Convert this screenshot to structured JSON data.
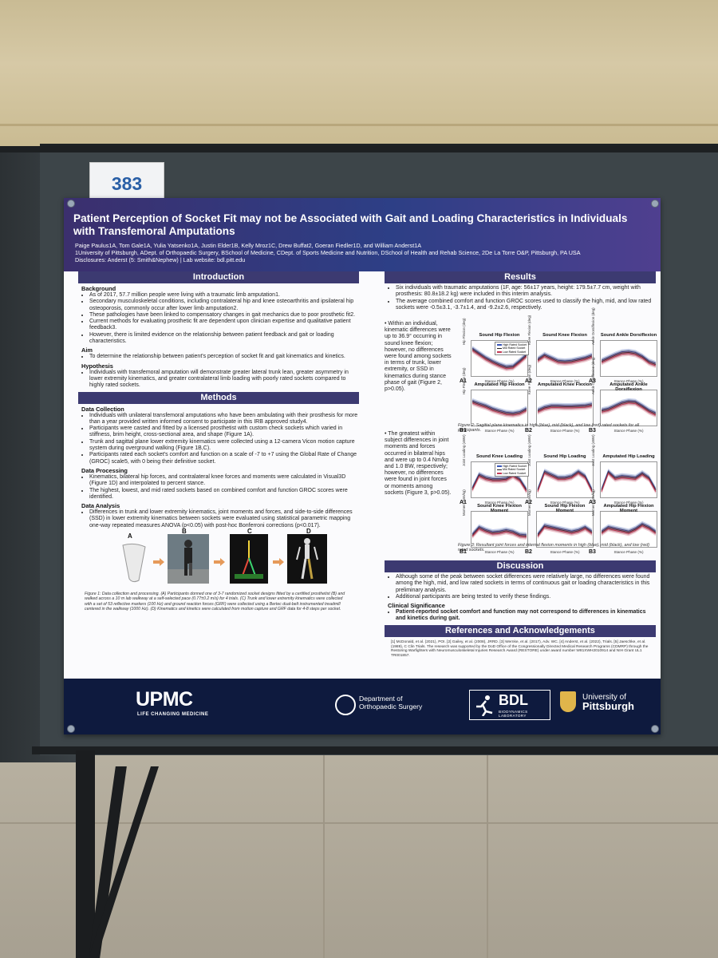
{
  "booth_number": "383",
  "header": {
    "title": "Patient Perception of Socket Fit may not be Associated with Gait and Loading Characteristics in Individuals with Transfemoral Amputations",
    "authors": "Paige Paulus1A, Tom Gale1A, Yulia Yatsenko1A, Justin Elder1B, Kelly Mroz1C, Drew Buffat2, Goeran Fiedler1D, and William Anderst1A",
    "affiliations": "1University of Pittsburgh, ADept. of Orthopaedic Surgery, BSchool of Medicine, CDept. of Sports Medicine and Nutrition, DSchool of Health and Rehab Science, 2De La Torre O&P, Pittsburgh, PA USA",
    "disclosures": "Disclosures: Anderst (5: Smith&Nephew) | Lab website: bdl.pitt.edu"
  },
  "introduction": {
    "heading": "Introduction",
    "background_label": "Background",
    "background": [
      "As of 2017, 57.7 million people were living with a traumatic limb amputation1.",
      "Secondary musculoskeletal conditions, including contralateral hip and knee osteoarthritis and ipsilateral hip osteoporosis, commonly occur after lower limb amputation2.",
      "These pathologies have been linked to compensatory changes in gait mechanics due to poor prosthetic fit2.",
      "Current methods for evaluating prosthetic fit are dependent upon clinician expertise and qualitative patient feedback3.",
      "However, there is limited evidence on the relationship between patient feedback and gait or loading characteristics."
    ],
    "aim_label": "Aim",
    "aim": [
      "To determine the relationship between patient's perception of socket fit and gait kinematics and kinetics."
    ],
    "hypothesis_label": "Hypothesis",
    "hypothesis": [
      "Individuals with transfemoral amputation will demonstrate greater lateral trunk lean, greater asymmetry in lower extremity kinematics, and greater contralateral limb loading with poorly rated sockets compared to highly rated sockets."
    ]
  },
  "methods": {
    "heading": "Methods",
    "data_collection_label": "Data Collection",
    "data_collection": [
      "Individuals with unilateral transfemoral amputations who have been ambulating with their prosthesis for more than a year provided written informed consent to participate in this IRB approved study4.",
      "Participants were casted and fitted by a licensed prosthetist with custom check sockets which varied in stiffness, brim height, cross-sectional area, and shape (Figure 1A).",
      "Trunk and sagittal plane lower extremity kinematics were collected using a 12-camera Vicon motion capture system during overground walking (Figure 1B,C).",
      "Participants rated each socket's comfort and function on a scale of -7 to +7 using the Global Rate of Change (GROC) scale5, with 0 being their definitive socket."
    ],
    "data_processing_label": "Data Processing",
    "data_processing": [
      "Kinematics, bilateral hip forces, and contralateral knee forces and moments were calculated in Visual3D (Figure 1D) and interpolated to percent stance.",
      "The highest, lowest, and mid rated sockets based on combined comfort and function GROC scores were identified."
    ],
    "data_analysis_label": "Data Analysis",
    "data_analysis": [
      "Differences in trunk and lower extremity kinematics, joint moments and forces, and side-to-side differences (SSD) in lower extremity kinematics between sockets were evaluated using statistical parametric mapping one-way repeated measures ANOVA (p<0.05) with post-hoc Bonferroni corrections (p<0.017)."
    ],
    "figure_labels": [
      "A",
      "B",
      "C",
      "D"
    ],
    "figure1_caption": "Figure 1: Data collection and processing. (A) Participants donned one of 3-7 randomized socket designs fitted by a certified prosthetist (B) and walked across a 10 m lab walkway at a self-selected pace (0.77±0.2 m/s) for 4 trials. (C) Trunk and lower extremity kinematics were collected with a set of 53 reflective markers (100 Hz) and ground reaction forces (GRF) were collected using a Bertec dual-belt instrumented treadmill centered in the walkway (1000 Hz). (D) Kinematics and kinetics were calculated from motion capture and GRF data for 4-8 steps per socket."
  },
  "results": {
    "heading": "Results",
    "bullets": [
      "Six individuals with traumatic amputations (1F, age: 56±17 years, height: 179.5±7.7 cm, weight with prosthesis: 80.8±18.2 kg) were included in this interim analysis.",
      "The average combined comfort and function GROC scores used to classify the high, mid, and low rated sockets were -0.5±3.1, -3.7±1.4, and -9.2±2.6, respectively."
    ],
    "side_text_1": "Within an individual, kinematic differences were up to 36.9° occurring in sound knee flexion; however, no differences were found among sockets in terms of trunk, lower extremity, or SSD in kinematics during stance phase of gait (Figure 2, p>0.05).",
    "side_text_2": "The greatest within subject differences in joint moments and forces occurred in bilateral hips and were up to 0.4 Nm/kg and 1.0 BW, respectively; however, no differences were found in joint forces or moments among sockets (Figure 3, p>0.05).",
    "legend": [
      "High Rated Socket",
      "Mid Rated Socket",
      "Low Rated Socket"
    ],
    "legend_colors": [
      "#3a56b8",
      "#222222",
      "#c43a56"
    ],
    "figure2": {
      "plots": [
        {
          "id": "A1",
          "title": "Sound Hip Flexion",
          "ylabel": "Hip Flexion (deg)",
          "xlabel": "Stance Phase (%)"
        },
        {
          "id": "A2",
          "title": "Sound Knee Flexion",
          "ylabel": "Knee Flexion (deg)",
          "xlabel": "Stance Phase (%)"
        },
        {
          "id": "A3",
          "title": "Sound Ankle Dorsiflexion",
          "ylabel": "Ankle Dorsiflexion (deg)",
          "xlabel": "Stance Phase (%)"
        },
        {
          "id": "B1",
          "title": "Amputated Hip Flexion",
          "ylabel": "Hip Flexion (deg)",
          "xlabel": "Stance Phase (%)"
        },
        {
          "id": "B2",
          "title": "Amputated Knee Flexion",
          "ylabel": "Knee Flexion (deg)",
          "xlabel": "Stance Phase (%)"
        },
        {
          "id": "B3",
          "title": "Amputated Ankle Dorsiflexion",
          "ylabel": "Ankle Dorsiflexion (deg)",
          "xlabel": "Stance Phase (%)"
        }
      ],
      "caption": "Figure 2: Sagittal plane kinematics in high (blue), mid (black), and low (red) rated sockets for all participants."
    },
    "figure3": {
      "plots": [
        {
          "id": "A1",
          "title": "Sound Knee Loading",
          "ylabel": "Joint Loading (xBW)",
          "xlabel": "Stance Phase (%)"
        },
        {
          "id": "A2",
          "title": "Sound Hip Loading",
          "ylabel": "Joint Loading (xBW)",
          "xlabel": "Stance Phase (%)"
        },
        {
          "id": "A3",
          "title": "Amputated Hip Loading",
          "ylabel": "Joint Loading (xBW)",
          "xlabel": "Stance Phase (%)"
        },
        {
          "id": "B1",
          "title": "Sound Knee Flexion Moment",
          "ylabel": "Moment (Nm/kg)",
          "xlabel": "Stance Phase (%)"
        },
        {
          "id": "B2",
          "title": "Sound Hip Flexion Moment",
          "ylabel": "Moment (Nm/kg)",
          "xlabel": "Stance Phase (%)"
        },
        {
          "id": "B3",
          "title": "Amputated Hip Flexion Moment",
          "ylabel": "Moment (Nm/kg)",
          "xlabel": "Stance Phase (%)"
        }
      ],
      "caption": "Figure 3: Resultant joint forces and internal flexion moments in high (blue), mid (black), and low (red) rated sockets."
    }
  },
  "discussion": {
    "heading": "Discussion",
    "bullets": [
      "Although some of the peak between socket differences were relatively large, no differences were found among the high, mid, and low rated sockets in terms of continuous gait or loading characteristics in this preliminary analysis.",
      "Additional participants are being tested to verify these findings."
    ],
    "clinical_label": "Clinical Significance",
    "clinical": [
      "Patient-reported socket comfort and function may not correspond to differences in kinematics and kinetics during gait."
    ]
  },
  "references": {
    "heading": "References and Acknowledgements",
    "text": "[1] McDonald, et al. (2021), POI. [2] Gailey, et al. (2008), JRRD. [3] Wernke, et al. (2017), Adv. WC. [4] Anderst, et al. (2022), Trials. [5] Jaeschke, et al. (1989), C Clin Trials. The research was supported by the DoD Office of the Congressionally Directed Medical Research Programs (CDMRP) through the Restoring Warfighters with Neuromusculoskeletal Injuries Research Award (RESTORE) under award number W81XWH2010914 and NIH Grant UL1 TR001857."
  },
  "footer": {
    "upmc": "UPMC",
    "upmc_tagline": "LIFE CHANGING MEDICINE",
    "dept_line1": "Department of",
    "dept_line2": "Orthopaedic Surgery",
    "bdl": "BDL",
    "bdl_sub": "BIODYNAMICS LABORATORY",
    "pitt_line1": "University of",
    "pitt_line2": "Pittsburgh"
  }
}
